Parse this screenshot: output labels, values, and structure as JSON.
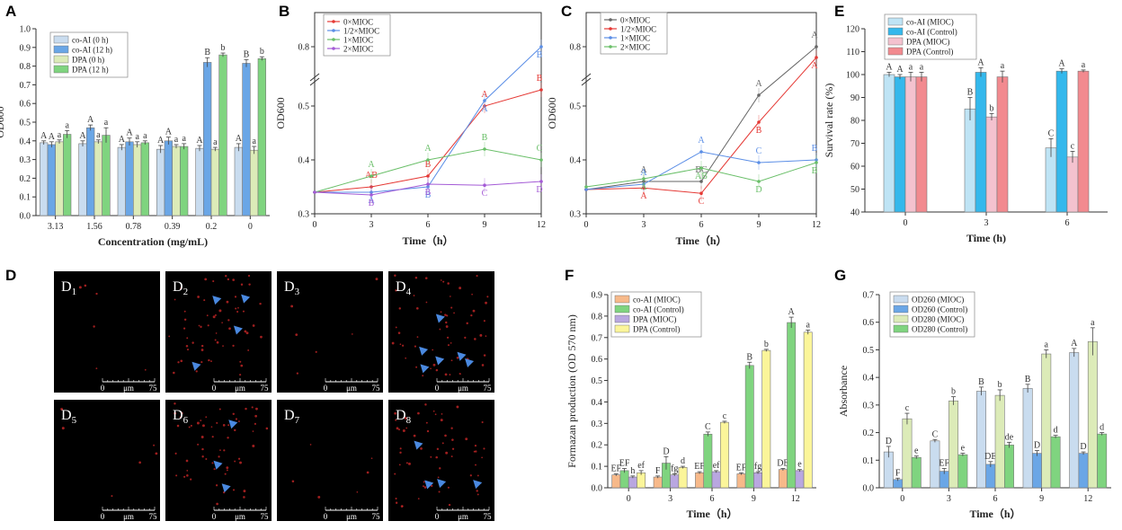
{
  "colors": {
    "light_blue": "#c9dcef",
    "blue": "#6aa6e6",
    "light_green": "#dcebb8",
    "green": "#7fd47f",
    "sky": "#bfe4f5",
    "cyan": "#34b8ec",
    "pink": "#f4c2cf",
    "salmon": "#f28a8f",
    "orange": "#f7b98a",
    "purple": "#b9a7e0",
    "yellow": "#fbf59a",
    "line_red": "#e53935",
    "line_blue": "#5b8ee6",
    "line_green": "#6abf69",
    "line_violet": "#a45bd6",
    "line_gray": "#666666",
    "marker_blue": "#4a89e0"
  },
  "chart_data": [
    {
      "id": "A",
      "type": "bar",
      "categories": [
        "3.13",
        "1.56",
        "0.78",
        "0.39",
        "0.2",
        "0"
      ],
      "series": [
        {
          "name": "co-AI (0 h)",
          "color_key": "light_blue",
          "values": [
            0.39,
            0.385,
            0.365,
            0.355,
            0.36,
            0.365
          ],
          "err": [
            0.01,
            0.015,
            0.015,
            0.02,
            0.015,
            0.02
          ],
          "letters": [
            "A",
            "A",
            "A",
            "A",
            "A",
            "A"
          ]
        },
        {
          "name": "co-AI (12 h)",
          "color_key": "blue",
          "values": [
            0.38,
            0.47,
            0.395,
            0.4,
            0.82,
            0.815
          ],
          "err": [
            0.015,
            0.015,
            0.02,
            0.02,
            0.025,
            0.02
          ],
          "letters": [
            "A",
            "A",
            "A",
            "A",
            "B",
            "B"
          ]
        },
        {
          "name": "DPA (0 h)",
          "color_key": "light_green",
          "values": [
            0.395,
            0.395,
            0.38,
            0.37,
            0.355,
            0.35
          ],
          "err": [
            0.01,
            0.01,
            0.015,
            0.01,
            0.01,
            0.02
          ],
          "letters": [
            "a",
            "a",
            "a",
            "a",
            "a",
            "a"
          ]
        },
        {
          "name": "DPA (12 h)",
          "color_key": "green",
          "values": [
            0.435,
            0.43,
            0.39,
            0.37,
            0.86,
            0.84
          ],
          "err": [
            0.02,
            0.04,
            0.01,
            0.015,
            0.01,
            0.01
          ],
          "letters": [
            "a",
            "a",
            "a",
            "a",
            "b",
            "b"
          ]
        }
      ],
      "xlabel": "Concentration (mg/mL)",
      "ylabel": "OD600",
      "ylim": [
        0.0,
        1.0
      ],
      "yticks": [
        "0.0",
        "0.1",
        "0.2",
        "0.3",
        "0.4",
        "0.5",
        "0.6",
        "0.7",
        "0.8",
        "0.9",
        "1.0"
      ]
    },
    {
      "id": "B",
      "type": "line",
      "x": [
        0,
        3,
        6,
        9,
        12
      ],
      "series": [
        {
          "name": "0×MIOC",
          "color_key": "line_red",
          "values": [
            0.34,
            0.35,
            0.37,
            0.5,
            0.76
          ],
          "letters": [
            "",
            "AB",
            "B",
            "A",
            "B"
          ]
        },
        {
          "name": "1/2×MIOC",
          "color_key": "line_blue",
          "values": [
            0.34,
            0.34,
            0.35,
            0.51,
            0.8
          ],
          "letters": [
            "",
            "A",
            "B",
            "A",
            "B"
          ]
        },
        {
          "name": "1×MIOC",
          "color_key": "line_green",
          "values": [
            0.34,
            0.37,
            0.4,
            0.42,
            0.4
          ],
          "letters": [
            "",
            "A",
            "A",
            "B",
            "C"
          ]
        },
        {
          "name": "2×MIOC",
          "color_key": "line_violet",
          "values": [
            0.34,
            0.335,
            0.355,
            0.353,
            0.36
          ],
          "letters": [
            "",
            "B",
            "B",
            "C",
            "D"
          ]
        }
      ],
      "xlabel": "Time（h）",
      "ylabel": "OD600",
      "yticks": [
        "0.3",
        "0.4",
        "0.5",
        "0.8"
      ],
      "xticks": [
        "0",
        "3",
        "6",
        "9",
        "12"
      ],
      "axis_break": true
    },
    {
      "id": "C",
      "type": "line",
      "x": [
        0,
        3,
        6,
        9,
        12
      ],
      "series": [
        {
          "name": "0×MIOC",
          "color_key": "line_gray",
          "values": [
            0.345,
            0.36,
            0.36,
            0.52,
            0.8
          ],
          "letters": [
            "",
            "A",
            "BC",
            "A",
            "A"
          ]
        },
        {
          "name": "1/2×MIOC",
          "color_key": "line_red",
          "values": [
            0.345,
            0.348,
            0.338,
            0.47,
            0.79
          ],
          "letters": [
            "",
            "A",
            "C",
            "B",
            "A"
          ]
        },
        {
          "name": "1×MIOC",
          "color_key": "line_blue",
          "values": [
            0.345,
            0.355,
            0.415,
            0.395,
            0.4
          ],
          "letters": [
            "",
            "A",
            "A",
            "C",
            "B"
          ]
        },
        {
          "name": "2×MIOC",
          "color_key": "line_green",
          "values": [
            0.35,
            0.365,
            0.385,
            0.36,
            0.395
          ],
          "letters": [
            "",
            "A",
            "AB",
            "D",
            "B"
          ]
        }
      ],
      "xlabel": "Time（h）",
      "ylabel": "OD600",
      "yticks": [
        "0.3",
        "0.4",
        "0.5",
        "0.8"
      ],
      "xticks": [
        "0",
        "3",
        "6",
        "9",
        "12"
      ],
      "axis_break": true
    },
    {
      "id": "E",
      "type": "bar",
      "categories": [
        "0",
        "3",
        "6"
      ],
      "series": [
        {
          "name": "co-AI (MIOC)",
          "color_key": "sky",
          "values": [
            100,
            85,
            68
          ],
          "err": [
            1,
            5,
            4
          ],
          "letters": [
            "A",
            "B",
            "C"
          ]
        },
        {
          "name": "co-AI (Control)",
          "color_key": "cyan",
          "values": [
            99,
            101,
            101.5
          ],
          "err": [
            1,
            2,
            1
          ],
          "letters": [
            "A",
            "A",
            "A"
          ]
        },
        {
          "name": "DPA (MIOC)",
          "color_key": "pink",
          "values": [
            99,
            81.5,
            64
          ],
          "err": [
            2,
            1.5,
            2.5
          ],
          "letters": [
            "a",
            "b",
            "c"
          ]
        },
        {
          "name": "DPA (Control)",
          "color_key": "salmon",
          "values": [
            99,
            99,
            101.5
          ],
          "err": [
            2,
            2.5,
            0.5
          ],
          "letters": [
            "a",
            "a",
            "a"
          ]
        }
      ],
      "xlabel": "Time (h)",
      "ylabel": "Survival rate (%)",
      "ylim": [
        40,
        120
      ],
      "yticks": [
        "40",
        "50",
        "60",
        "70",
        "80",
        "90",
        "100",
        "110",
        "120"
      ]
    },
    {
      "id": "F",
      "type": "bar",
      "categories": [
        "0",
        "3",
        "6",
        "9",
        "12"
      ],
      "series": [
        {
          "name": "co-AI (MIOC)",
          "color_key": "orange",
          "values": [
            0.06,
            0.05,
            0.07,
            0.065,
            0.085
          ],
          "err": [
            0.005,
            0.005,
            0.005,
            0.005,
            0.005
          ],
          "letters": [
            "EF",
            "F",
            "EF",
            "EF",
            "DE"
          ]
        },
        {
          "name": "co-AI (Control)",
          "color_key": "green",
          "values": [
            0.08,
            0.115,
            0.25,
            0.57,
            0.77
          ],
          "err": [
            0.01,
            0.03,
            0.01,
            0.015,
            0.025
          ],
          "letters": [
            "EF",
            "D",
            "C",
            "B",
            "A"
          ]
        },
        {
          "name": "DPA (MIOC)",
          "color_key": "purple",
          "values": [
            0.05,
            0.06,
            0.075,
            0.07,
            0.08
          ],
          "err": [
            0.005,
            0.005,
            0.005,
            0.005,
            0.005
          ],
          "letters": [
            "h",
            "fg",
            "ef",
            "fg",
            "e"
          ]
        },
        {
          "name": "DPA (Control)",
          "color_key": "yellow",
          "values": [
            0.07,
            0.095,
            0.305,
            0.64,
            0.725
          ],
          "err": [
            0.01,
            0.005,
            0.005,
            0.005,
            0.01
          ],
          "letters": [
            "ef",
            "d",
            "c",
            "b",
            "a"
          ]
        }
      ],
      "xlabel": "Time（h）",
      "ylabel": "Formazan production (OD 570 nm)",
      "ylim": [
        0.0,
        0.9
      ],
      "yticks": [
        "0.0",
        "0.1",
        "0.2",
        "0.3",
        "0.4",
        "0.5",
        "0.6",
        "0.7",
        "0.8",
        "0.9"
      ]
    },
    {
      "id": "G",
      "type": "bar",
      "categories": [
        "0",
        "3",
        "6",
        "9",
        "12"
      ],
      "series": [
        {
          "name": "OD260 (MIOC)",
          "color_key": "light_blue",
          "values": [
            0.13,
            0.17,
            0.35,
            0.36,
            0.49
          ],
          "err": [
            0.02,
            0.005,
            0.015,
            0.015,
            0.015
          ],
          "letters": [
            "D",
            "C",
            "B",
            "B",
            "A"
          ]
        },
        {
          "name": "OD260 (Control)",
          "color_key": "blue",
          "values": [
            0.03,
            0.06,
            0.085,
            0.125,
            0.125
          ],
          "err": [
            0.005,
            0.01,
            0.01,
            0.01,
            0.005
          ],
          "letters": [
            "F",
            "EF",
            "DE",
            "D",
            "D"
          ]
        },
        {
          "name": "OD280 (MIOC)",
          "color_key": "light_green",
          "values": [
            0.25,
            0.315,
            0.335,
            0.485,
            0.53
          ],
          "err": [
            0.02,
            0.015,
            0.02,
            0.015,
            0.05
          ],
          "letters": [
            "c",
            "b",
            "b",
            "a",
            "a"
          ]
        },
        {
          "name": "OD280 (Control)",
          "color_key": "green",
          "values": [
            0.11,
            0.12,
            0.155,
            0.185,
            0.195
          ],
          "err": [
            0.005,
            0.005,
            0.01,
            0.005,
            0.005
          ],
          "letters": [
            "e",
            "e",
            "de",
            "d",
            "d"
          ]
        }
      ],
      "xlabel": "Time（h）",
      "ylabel": "Absorbance",
      "ylim": [
        0.0,
        0.7
      ],
      "yticks": [
        "0.0",
        "0.1",
        "0.2",
        "0.3",
        "0.4",
        "0.5",
        "0.6",
        "0.7"
      ]
    }
  ],
  "panel_labels": {
    "A": "A",
    "B": "B",
    "C": "C",
    "D": "D",
    "E": "E",
    "F": "F",
    "G": "G"
  },
  "micrographs": {
    "scale_unit": "μm",
    "scale_start": "0",
    "scale_end": "75",
    "tiles": [
      {
        "label": "D",
        "sub": "1",
        "arrows": 0
      },
      {
        "label": "D",
        "sub": "2",
        "arrows": 4
      },
      {
        "label": "D",
        "sub": "3",
        "arrows": 0
      },
      {
        "label": "D",
        "sub": "4",
        "arrows": 6
      },
      {
        "label": "D",
        "sub": "5",
        "arrows": 0
      },
      {
        "label": "D",
        "sub": "6",
        "arrows": 3
      },
      {
        "label": "D",
        "sub": "7",
        "arrows": 0
      },
      {
        "label": "D",
        "sub": "8",
        "arrows": 4
      }
    ]
  }
}
